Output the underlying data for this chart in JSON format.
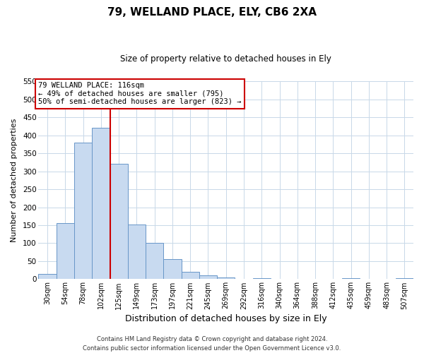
{
  "title": "79, WELLAND PLACE, ELY, CB6 2XA",
  "subtitle": "Size of property relative to detached houses in Ely",
  "xlabel": "Distribution of detached houses by size in Ely",
  "ylabel": "Number of detached properties",
  "bar_labels": [
    "30sqm",
    "54sqm",
    "78sqm",
    "102sqm",
    "125sqm",
    "149sqm",
    "173sqm",
    "197sqm",
    "221sqm",
    "245sqm",
    "269sqm",
    "292sqm",
    "316sqm",
    "340sqm",
    "364sqm",
    "388sqm",
    "412sqm",
    "435sqm",
    "459sqm",
    "483sqm",
    "507sqm"
  ],
  "bar_heights": [
    15,
    155,
    380,
    420,
    320,
    152,
    100,
    55,
    20,
    10,
    5,
    1,
    2,
    0,
    0,
    0,
    0,
    2,
    0,
    0,
    2
  ],
  "bar_color": "#c8daf0",
  "bar_edge_color": "#6896c8",
  "ylim": [
    0,
    550
  ],
  "yticks": [
    0,
    50,
    100,
    150,
    200,
    250,
    300,
    350,
    400,
    450,
    500,
    550
  ],
  "vline_pos": 3.5,
  "vline_color": "#cc0000",
  "annotation_text": "79 WELLAND PLACE: 116sqm\n← 49% of detached houses are smaller (795)\n50% of semi-detached houses are larger (823) →",
  "annotation_box_color": "#ffffff",
  "annotation_box_edge": "#cc0000",
  "footer_line1": "Contains HM Land Registry data © Crown copyright and database right 2024.",
  "footer_line2": "Contains public sector information licensed under the Open Government Licence v3.0.",
  "background_color": "#ffffff",
  "grid_color": "#c8d8e8",
  "title_fontsize": 11,
  "subtitle_fontsize": 8.5,
  "xlabel_fontsize": 9,
  "ylabel_fontsize": 8,
  "tick_fontsize": 7,
  "annot_fontsize": 7.5,
  "footer_fontsize": 6
}
